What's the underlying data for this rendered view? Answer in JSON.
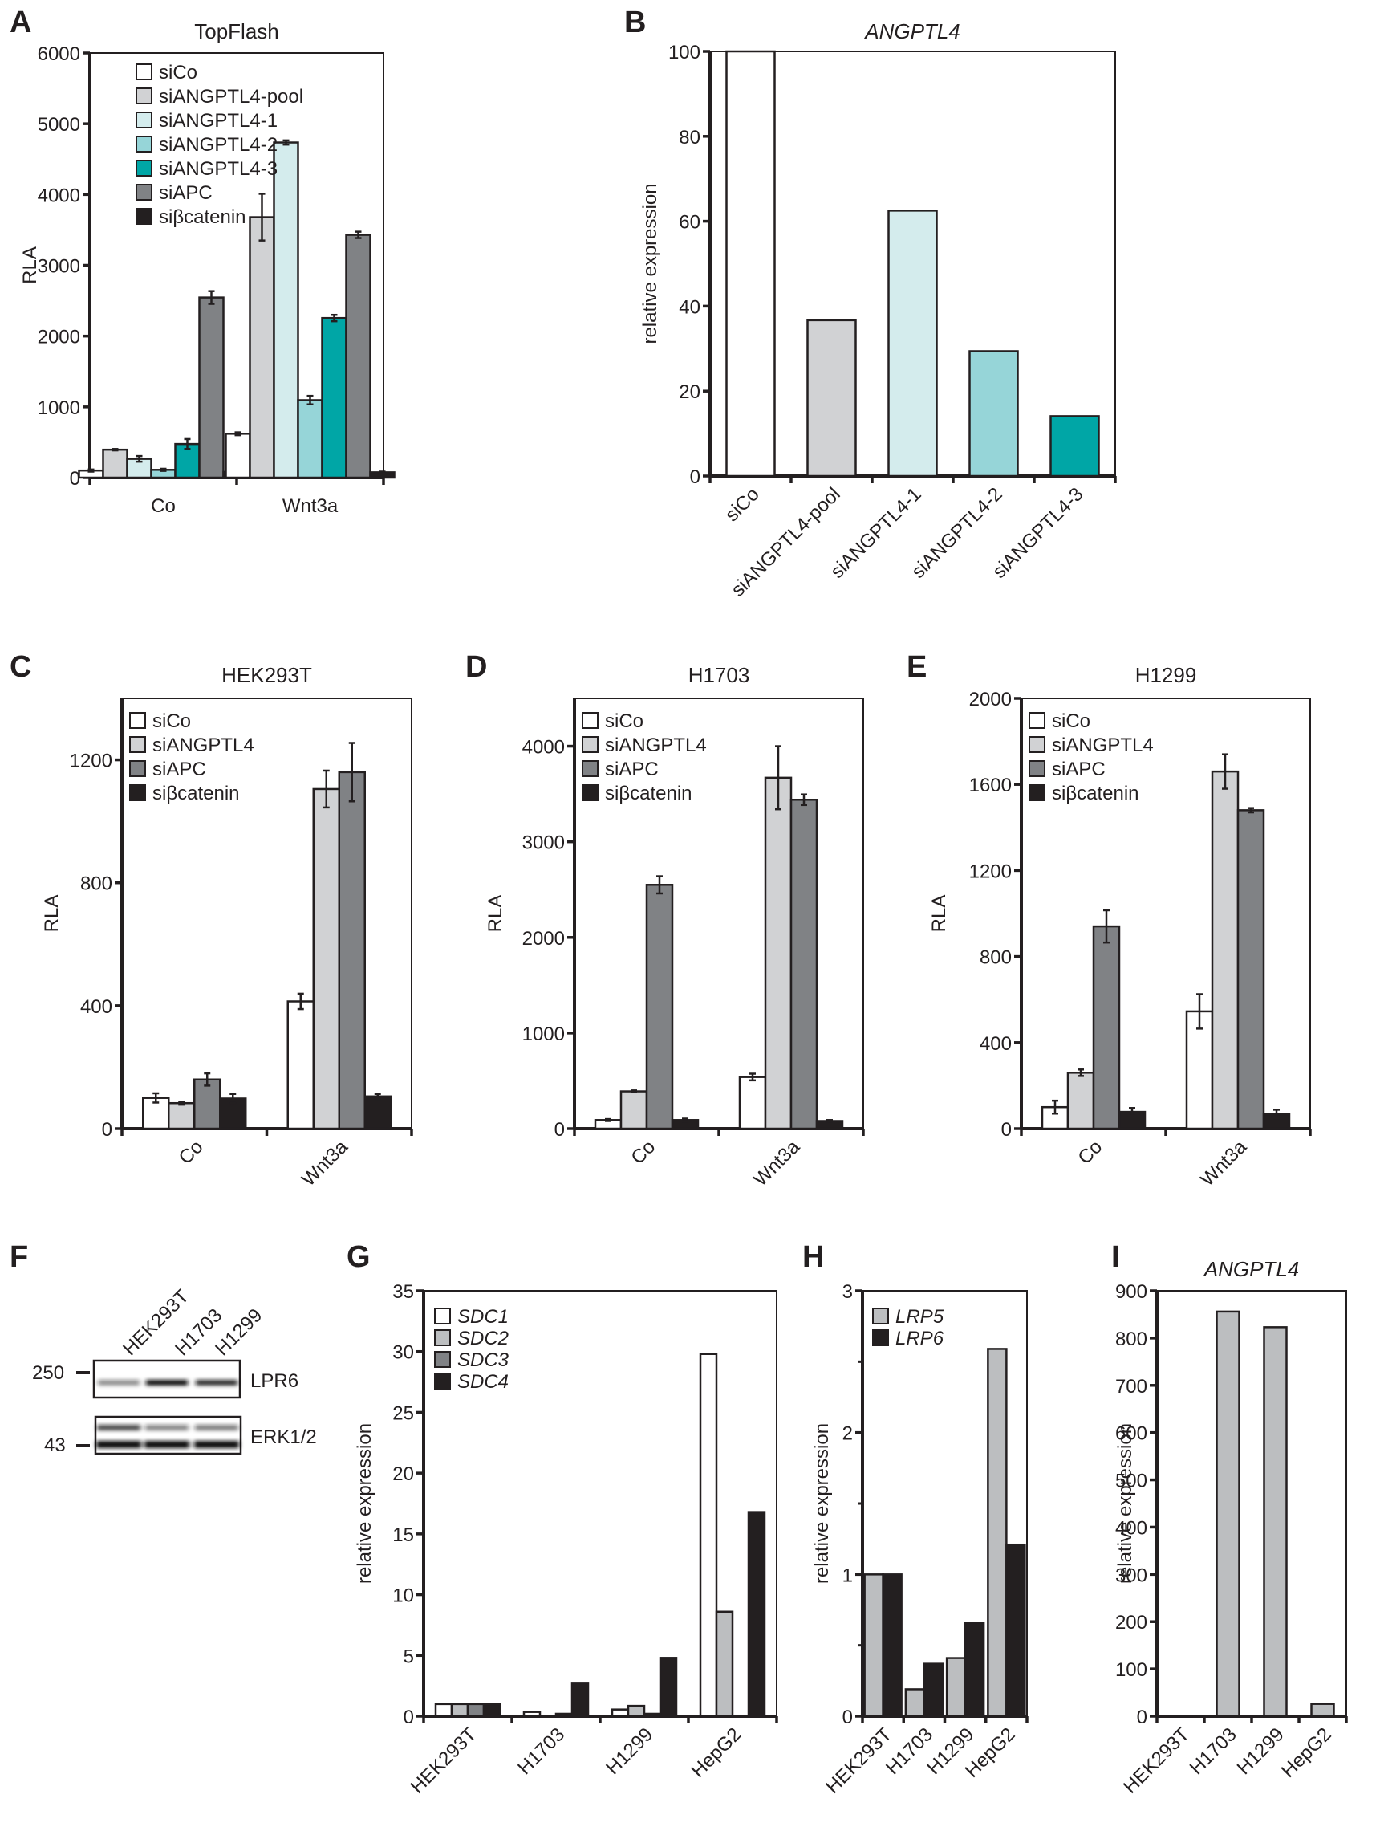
{
  "figure": {
    "panel_letters": [
      "A",
      "B",
      "C",
      "D",
      "E",
      "F",
      "G",
      "H",
      "I"
    ]
  },
  "colors": {
    "siCo": "#ffffff",
    "siANGPTL4_pool": "#d1d2d4",
    "siANGPTL4_1": "#d4eced",
    "siANGPTL4_2": "#96d5d8",
    "siANGPTL4_3": "#00a6a6",
    "siAPC": "#808285",
    "sibcatenin": "#231f20",
    "siANGPTL4": "#d1d2d4",
    "SDC1": "#ffffff",
    "SDC2": "#bcbec0",
    "SDC3": "#808285",
    "SDC4": "#231f20",
    "LRP5": "#bcbec0",
    "LRP6": "#231f20",
    "ANGPTL4_bar": "#bcbec0"
  },
  "chart_data": [
    {
      "id": "A",
      "type": "bar",
      "title": "TopFlash",
      "title_italic": false,
      "ylabel": "RLA",
      "xlabel": "",
      "ylim": [
        0,
        6000
      ],
      "yticks": [
        0,
        1000,
        2000,
        3000,
        4000,
        5000,
        6000
      ],
      "categories": [
        "Co",
        "Wnt3a"
      ],
      "rotate_categories": false,
      "legend_position": "top-left",
      "series": [
        {
          "name": "siCo",
          "color_key": "siCo",
          "values": [
            100,
            620
          ],
          "errors": [
            15,
            20
          ]
        },
        {
          "name": "siANGPTL4-pool",
          "color_key": "siANGPTL4_pool",
          "values": [
            395,
            3680
          ],
          "errors": [
            10,
            330
          ]
        },
        {
          "name": "siANGPTL4-1",
          "color_key": "siANGPTL4_1",
          "values": [
            265,
            4735
          ],
          "errors": [
            40,
            30
          ]
        },
        {
          "name": "siANGPTL4-2",
          "color_key": "siANGPTL4_2",
          "values": [
            110,
            1095
          ],
          "errors": [
            15,
            60
          ]
        },
        {
          "name": "siANGPTL4-3",
          "color_key": "siANGPTL4_3",
          "values": [
            475,
            2255
          ],
          "errors": [
            70,
            45
          ]
        },
        {
          "name": "siAPC",
          "color_key": "siAPC",
          "values": [
            2545,
            3430
          ],
          "errors": [
            90,
            45
          ]
        },
        {
          "name": "siβcatenin",
          "color_key": "sibcatenin",
          "values": [
            80,
            75
          ],
          "errors": [
            15,
            10
          ]
        }
      ]
    },
    {
      "id": "B",
      "type": "bar",
      "title": "ANGPTL4",
      "title_italic": true,
      "ylabel": "relative expression",
      "xlabel": "",
      "ylim": [
        0,
        100
      ],
      "yticks": [
        0,
        20,
        40,
        60,
        80,
        100
      ],
      "categories": [
        "siCo",
        "siANGPTL4-pool",
        "siANGPTL4-1",
        "siANGPTL4-2",
        "siANGPTL4-3"
      ],
      "rotate_categories": true,
      "legend_position": "none",
      "series": [
        {
          "name": "relative expression",
          "color_keys": [
            "siCo",
            "siANGPTL4_pool",
            "siANGPTL4_1",
            "siANGPTL4_2",
            "siANGPTL4_3"
          ],
          "values": [
            100,
            36.7,
            62.5,
            29.4,
            14.1
          ]
        }
      ]
    },
    {
      "id": "C",
      "type": "bar",
      "title": "HEK293T",
      "title_italic": false,
      "ylabel": "RLA",
      "xlabel": "",
      "ylim": [
        0,
        1400
      ],
      "yticks": [
        0,
        400,
        800,
        1200
      ],
      "categories": [
        "Co",
        "Wnt3a"
      ],
      "rotate_categories": true,
      "legend_position": "top-left",
      "series": [
        {
          "name": "siCo",
          "color_key": "siCo",
          "values": [
            100,
            414
          ],
          "errors": [
            15,
            25
          ]
        },
        {
          "name": "siANGPTL4",
          "color_key": "siANGPTL4",
          "values": [
            83,
            1105
          ],
          "errors": [
            5,
            60
          ]
        },
        {
          "name": "siAPC",
          "color_key": "siAPC",
          "values": [
            160,
            1160
          ],
          "errors": [
            20,
            95
          ]
        },
        {
          "name": "siβcatenin",
          "color_key": "sibcatenin",
          "values": [
            98,
            105
          ],
          "errors": [
            15,
            8
          ]
        }
      ]
    },
    {
      "id": "D",
      "type": "bar",
      "title": "H1703",
      "title_italic": false,
      "ylabel": "RLA",
      "xlabel": "",
      "ylim": [
        0,
        4500
      ],
      "yticks": [
        0,
        1000,
        2000,
        3000,
        4000
      ],
      "categories": [
        "Co",
        "Wnt3a"
      ],
      "rotate_categories": true,
      "legend_position": "top-left",
      "series": [
        {
          "name": "siCo",
          "color_key": "siCo",
          "values": [
            90,
            540
          ],
          "errors": [
            10,
            35
          ]
        },
        {
          "name": "siANGPTL4",
          "color_key": "siANGPTL4",
          "values": [
            390,
            3670
          ],
          "errors": [
            10,
            330
          ]
        },
        {
          "name": "siAPC",
          "color_key": "siAPC",
          "values": [
            2550,
            3440
          ],
          "errors": [
            90,
            55
          ]
        },
        {
          "name": "siβcatenin",
          "color_key": "sibcatenin",
          "values": [
            90,
            80
          ],
          "errors": [
            15,
            10
          ]
        }
      ]
    },
    {
      "id": "E",
      "type": "bar",
      "title": "H1299",
      "title_italic": false,
      "ylabel": "RLA",
      "xlabel": "",
      "ylim": [
        0,
        2000
      ],
      "yticks": [
        0,
        400,
        800,
        1200,
        1600,
        2000
      ],
      "categories": [
        "Co",
        "Wnt3a"
      ],
      "rotate_categories": true,
      "legend_position": "top-left",
      "series": [
        {
          "name": "siCo",
          "color_key": "siCo",
          "values": [
            100,
            545
          ],
          "errors": [
            30,
            80
          ]
        },
        {
          "name": "siANGPTL4",
          "color_key": "siANGPTL4",
          "values": [
            260,
            1660
          ],
          "errors": [
            15,
            80
          ]
        },
        {
          "name": "siAPC",
          "color_key": "siAPC",
          "values": [
            940,
            1480
          ],
          "errors": [
            75,
            10
          ]
        },
        {
          "name": "siβcatenin",
          "color_key": "sibcatenin",
          "values": [
            78,
            68
          ],
          "errors": [
            18,
            20
          ]
        }
      ]
    },
    {
      "id": "G",
      "type": "bar",
      "title": "",
      "title_italic": false,
      "ylabel": "relative expression",
      "xlabel": "",
      "ylim": [
        0,
        35
      ],
      "yticks": [
        0,
        5,
        10,
        15,
        20,
        25,
        30,
        35
      ],
      "categories": [
        "HEK293T",
        "H1703",
        "H1299",
        "HepG2"
      ],
      "rotate_categories": true,
      "legend_position": "top-left",
      "legend_italic": true,
      "series": [
        {
          "name": "SDC1",
          "color_key": "SDC1",
          "values": [
            1,
            0.35,
            0.55,
            29.8
          ]
        },
        {
          "name": "SDC2",
          "color_key": "SDC2",
          "values": [
            1,
            0,
            0.85,
            8.6
          ]
        },
        {
          "name": "SDC3",
          "color_key": "SDC3",
          "values": [
            1,
            0.2,
            0.2,
            0.05
          ]
        },
        {
          "name": "SDC4",
          "color_key": "SDC4",
          "values": [
            1,
            2.75,
            4.8,
            16.8
          ]
        }
      ]
    },
    {
      "id": "H",
      "type": "bar",
      "title": "",
      "title_italic": false,
      "ylabel": "relative expression",
      "xlabel": "",
      "ylim": [
        0,
        3
      ],
      "yticks": [
        0,
        1,
        2,
        3
      ],
      "minor_yticks": [
        0.5,
        1.5,
        2.5
      ],
      "categories": [
        "HEK293T",
        "H1703",
        "H1299",
        "HepG2"
      ],
      "rotate_categories": true,
      "legend_position": "top-left",
      "legend_italic": true,
      "series": [
        {
          "name": "LRP5",
          "color_key": "LRP5",
          "values": [
            1,
            0.19,
            0.41,
            2.59
          ]
        },
        {
          "name": "LRP6",
          "color_key": "LRP6",
          "values": [
            1,
            0.37,
            0.66,
            1.21
          ]
        }
      ]
    },
    {
      "id": "I",
      "type": "bar",
      "title": "ANGPTL4",
      "title_italic": true,
      "ylabel": "relative expression",
      "xlabel": "",
      "ylim": [
        0,
        900
      ],
      "yticks": [
        0,
        100,
        200,
        300,
        400,
        500,
        600,
        700,
        800,
        900
      ],
      "categories": [
        "HEK293T",
        "H1703",
        "H1299",
        "HepG2"
      ],
      "rotate_categories": true,
      "legend_position": "none",
      "series": [
        {
          "name": "ANGPTL4",
          "color_key": "ANGPTL4_bar",
          "values": [
            1,
            856,
            823,
            26
          ]
        }
      ]
    }
  ],
  "western_blot": {
    "id": "F",
    "lanes": [
      "HEK293T",
      "H1703",
      "H1299"
    ],
    "markers": [
      "250",
      "43"
    ],
    "bands": [
      {
        "label": "LPR6",
        "relative_intensity": [
          0.35,
          1.0,
          0.85
        ]
      },
      {
        "label": "ERK1/2",
        "relative_intensity_upper": [
          0.8,
          0.45,
          0.5
        ],
        "relative_intensity_lower": [
          1.0,
          1.0,
          1.0
        ]
      }
    ]
  }
}
